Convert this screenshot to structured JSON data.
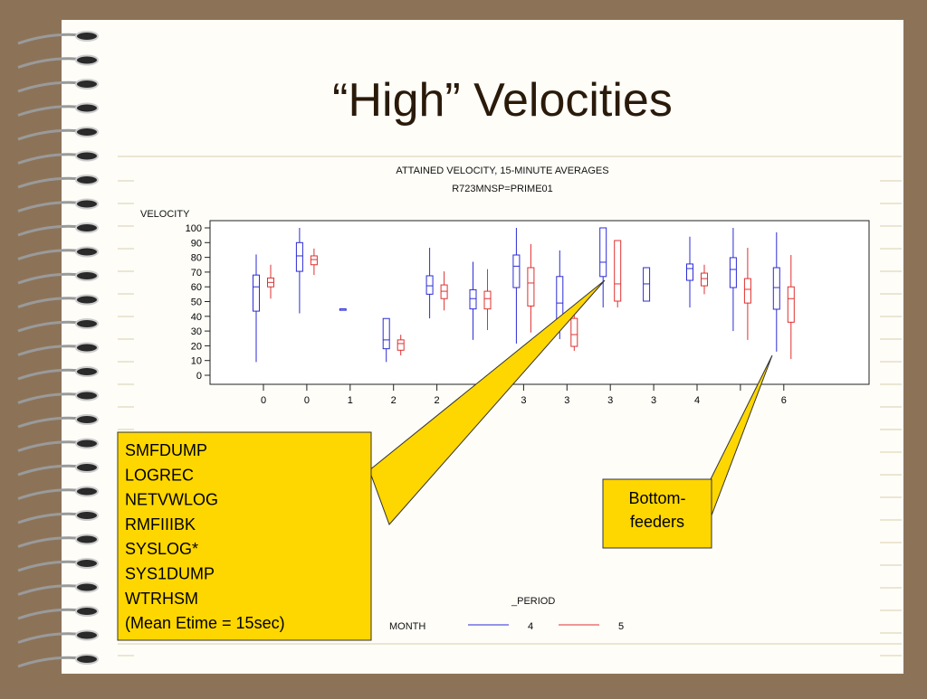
{
  "slide": {
    "title": "“High” Velocities",
    "callout_list": [
      "SMFDUMP",
      "LOGREC",
      "NETVWLOG",
      "RMFIIIBK",
      "SYSLOG*",
      "SYS1DUMP",
      "WTRHSM",
      "(Mean Etime = 15sec)"
    ],
    "callout_bottom": [
      "Bottom-",
      "feeders"
    ]
  },
  "chart_data": {
    "type": "box",
    "title": "ATTAINED VELOCITY, 15-MINUTE AVERAGES",
    "subtitle": "R723MNSP=PRIME01",
    "y_label": "VELOCITY",
    "legend_title": "_PERIOD",
    "legend_label": "MONTH",
    "categories": [
      "0",
      "0",
      "1",
      "2",
      "2",
      null,
      "3",
      "3",
      "3",
      "3",
      "4",
      null,
      "6"
    ],
    "ylim": [
      0,
      100
    ],
    "yticks": [
      0,
      10,
      20,
      30,
      40,
      50,
      60,
      70,
      80,
      90,
      100
    ],
    "series": [
      {
        "name": "4",
        "color": "#2b2bd6",
        "values": [
          {
            "min": 9,
            "q1": 43.5,
            "median": 60,
            "q3": 68,
            "max": 82
          },
          {
            "min": 42,
            "q1": 70.5,
            "median": 81,
            "q3": 90,
            "max": 100
          },
          {
            "min": 45,
            "q1": 45,
            "median": 45,
            "q3": 45,
            "max": 45
          },
          {
            "min": 9,
            "q1": 18,
            "median": 24,
            "q3": 38.5,
            "max": 38.5
          },
          {
            "min": 38.6,
            "q1": 55,
            "median": 60.7,
            "q3": 67.5,
            "max": 86.5
          },
          {
            "min": 24,
            "q1": 45,
            "median": 52,
            "q3": 58,
            "max": 77
          },
          {
            "min": 21.5,
            "q1": 59.5,
            "median": 74,
            "q3": 81.6,
            "max": 100
          },
          {
            "min": 24.5,
            "q1": 32.5,
            "median": 49,
            "q3": 67,
            "max": 84.7
          },
          {
            "min": 46,
            "q1": 67,
            "median": 76.7,
            "q3": 100,
            "max": 100
          },
          {
            "min": 50.3,
            "q1": 50.3,
            "median": 62,
            "q3": 73,
            "max": 73
          },
          {
            "min": 46,
            "q1": 64.4,
            "median": 72.4,
            "q3": 75.5,
            "max": 94
          },
          {
            "min": 30,
            "q1": 59.5,
            "median": 71.8,
            "q3": 79.8,
            "max": 100
          },
          {
            "min": 16,
            "q1": 44.8,
            "median": 59.5,
            "q3": 73,
            "max": 97
          }
        ]
      },
      {
        "name": "5",
        "color": "#e03030",
        "values": [
          {
            "min": 52,
            "q1": 60,
            "median": 63,
            "q3": 66,
            "max": 75
          },
          {
            "min": 68,
            "q1": 75,
            "median": 78.5,
            "q3": 81,
            "max": 86
          },
          null,
          {
            "min": 13.5,
            "q1": 17,
            "median": 21.5,
            "q3": 24,
            "max": 27.5
          },
          {
            "min": 44,
            "q1": 52,
            "median": 57,
            "q3": 61.3,
            "max": 70.5
          },
          {
            "min": 30.7,
            "q1": 45,
            "median": 52,
            "q3": 57,
            "max": 72
          },
          {
            "min": 29,
            "q1": 47,
            "median": 62.6,
            "q3": 73,
            "max": 89
          },
          {
            "min": 16.6,
            "q1": 19.6,
            "median": 27.6,
            "q3": 38.6,
            "max": 46
          },
          {
            "min": 46,
            "q1": 50.3,
            "median": 62,
            "q3": 91.4,
            "max": 91.4
          },
          null,
          {
            "min": 55,
            "q1": 60.7,
            "median": 65.6,
            "q3": 69.3,
            "max": 75
          },
          {
            "min": 24,
            "q1": 49,
            "median": 58.3,
            "q3": 65.6,
            "max": 86.5
          },
          {
            "min": 11,
            "q1": 36,
            "median": 52,
            "q3": 60,
            "max": 81.6
          }
        ]
      }
    ]
  }
}
